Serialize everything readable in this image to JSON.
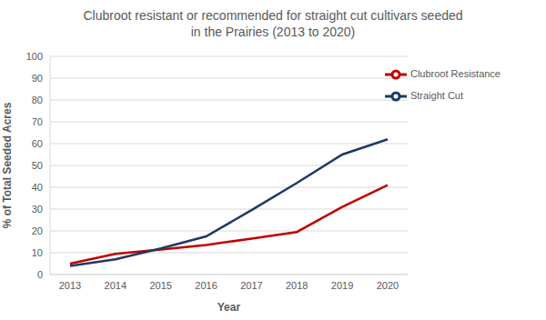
{
  "chart_data": {
    "type": "line",
    "title": "Clubroot resistant or recommended for straight cut cultivars seeded in the Prairies (2013 to 2020)",
    "x_label": "Year",
    "y_label": "% of Total Seeded Acres",
    "categories": [
      "2013",
      "2014",
      "2015",
      "2016",
      "2017",
      "2018",
      "2019",
      "2020"
    ],
    "series": [
      {
        "name": "Clubroot Resistance",
        "color": "#c00000",
        "values": [
          5,
          9.5,
          11.5,
          13.5,
          16.5,
          19.5,
          31,
          41
        ]
      },
      {
        "name": "Straight Cut",
        "color": "#1f3864",
        "values": [
          4,
          7,
          12,
          17.5,
          29.5,
          42,
          55,
          62
        ]
      }
    ],
    "ylim": [
      0,
      100
    ],
    "yticks": [
      0,
      10,
      20,
      30,
      40,
      50,
      60,
      70,
      80,
      90,
      100
    ],
    "grid": true,
    "legend": "upper right"
  }
}
